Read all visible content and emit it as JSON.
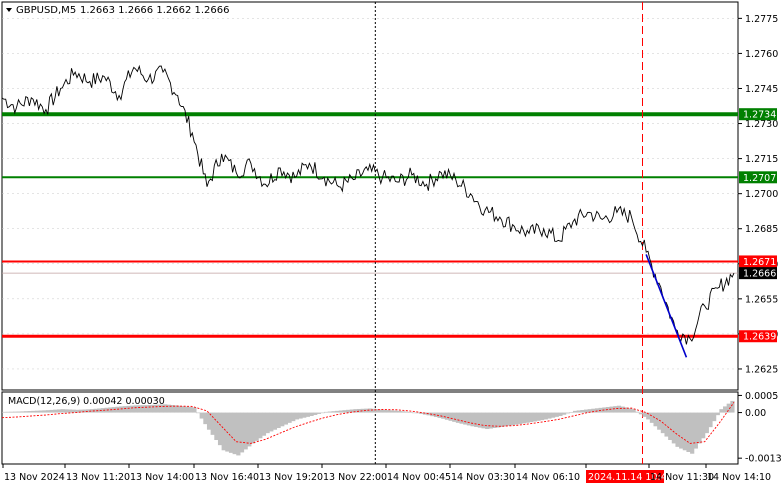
{
  "chart_data": {
    "type": "line",
    "header": {
      "symbol_timeframe": "GBPUSD,M5",
      "ohlc": "1.2663 1.2666 1.2662 1.2666"
    },
    "price_axis": {
      "ylim": [
        1.2616,
        1.2782
      ],
      "ticks": [
        "1.2775",
        "1.2760",
        "1.2745",
        "1.2730",
        "1.2715",
        "1.2700",
        "1.2685",
        "1.2670",
        "1.2655",
        "1.2640",
        "1.2625"
      ]
    },
    "time_axis": {
      "labels": [
        "13 Nov 2024",
        "13 Nov 11:20",
        "13 Nov 14:00",
        "13 Nov 16:40",
        "13 Nov 19:20",
        "13 Nov 22:00",
        "14 Nov 00:45",
        "14 Nov 03:30",
        "14 Nov 06:10",
        "2024.11.14 10:45",
        "14 Nov 11:30",
        "14 Nov 14:10"
      ],
      "highlighted_label": "2024.11.14 10:45"
    },
    "horizontal_levels": [
      {
        "price": 1.2734,
        "label": "1.2734",
        "color": "#008000",
        "width": 4
      },
      {
        "price": 1.2707,
        "label": "1.2707",
        "color": "#008000",
        "width": 2
      },
      {
        "price": 1.2671,
        "label": "1.2671",
        "color": "#ff0000",
        "width": 2
      },
      {
        "price": 1.2639,
        "label": "1.2639",
        "color": "#ff0000",
        "width": 3
      }
    ],
    "current_price": {
      "price": 1.2666,
      "label": "1.2666"
    },
    "price_series_x_index": [
      0,
      2,
      4,
      6,
      8,
      10,
      12,
      14,
      16,
      18,
      20,
      22,
      24,
      26,
      28,
      30,
      32,
      34,
      36,
      38,
      40,
      42,
      44,
      46,
      48,
      50,
      52,
      54,
      56,
      58,
      60,
      62,
      64,
      66,
      68,
      70,
      72,
      74,
      76,
      78,
      80,
      82,
      84,
      86,
      88,
      90,
      92,
      94,
      96,
      98,
      100
    ],
    "price_series": [
      1.2741,
      1.2737,
      1.2741,
      1.2736,
      1.2745,
      1.2752,
      1.2748,
      1.275,
      1.2742,
      1.2754,
      1.2749,
      1.2752,
      1.2742,
      1.2726,
      1.2703,
      1.2717,
      1.2709,
      1.2713,
      1.2704,
      1.2711,
      1.2707,
      1.2713,
      1.2707,
      1.2703,
      1.2706,
      1.271,
      1.2707,
      1.2705,
      1.2708,
      1.2704,
      1.2709,
      1.2706,
      1.27,
      1.2693,
      1.269,
      1.2686,
      1.2683,
      1.2685,
      1.268,
      1.2688,
      1.2692,
      1.2689,
      1.2692,
      1.269,
      1.2675,
      1.266,
      1.2642,
      1.2638,
      1.2652,
      1.266,
      1.2666
    ],
    "trend_line": {
      "from": [
        88,
        1.2674
      ],
      "to": [
        93.5,
        1.263
      ],
      "color": "#0000cc"
    },
    "vertical_markers": [
      {
        "x_index": 51,
        "style": "dotted",
        "color": "#000000"
      },
      {
        "x_index": 87.5,
        "style": "dashed",
        "color": "#ff0000"
      }
    ],
    "macd": {
      "label": "MACD(12,26,9) 0.00042 0.00030",
      "ylim": [
        -0.0015,
        0.0006
      ],
      "ticks": [
        "0.0005",
        "0.00",
        "-0.00133"
      ],
      "histogram": [
        2e-05,
        3e-05,
        5e-05,
        7e-05,
        0.0001,
        8e-05,
        0.0001,
        0.00014,
        0.00018,
        0.00021,
        0.00022,
        0.00024,
        0.0002,
        0.00015,
        -0.0005,
        -0.0011,
        -0.00125,
        -0.0009,
        -0.0006,
        -0.0004,
        -0.0002,
        -0.0001,
        2e-05,
        6e-05,
        0.0001,
        0.00012,
        8e-05,
        5e-05,
        0.0,
        -8e-05,
        -0.00018,
        -0.0003,
        -0.0004,
        -0.00048,
        -0.00042,
        -0.00035,
        -0.00028,
        -0.0002,
        -0.0001,
        5e-05,
        0.0001,
        0.00015,
        0.0002,
        0.0001,
        -0.0002,
        -0.0006,
        -0.001,
        -0.0012,
        -0.0006,
        0.0001,
        0.00042
      ],
      "signal": [
        -0.00015,
        -0.00013,
        -0.0001,
        -7e-05,
        -3e-05,
        0.0,
        4e-05,
        7e-05,
        0.0001,
        0.00014,
        0.00016,
        0.00018,
        0.00019,
        0.00018,
        5e-05,
        -0.0004,
        -0.00085,
        -0.0009,
        -0.00078,
        -0.0006,
        -0.00042,
        -0.00028,
        -0.00015,
        -5e-05,
        2e-05,
        7e-05,
        9e-05,
        8e-05,
        4e-05,
        -2e-05,
        -0.0001,
        -0.0002,
        -0.0003,
        -0.00038,
        -0.0004,
        -0.00038,
        -0.00033,
        -0.00027,
        -0.0002,
        -0.0001,
        0.0,
        7e-05,
        0.00012,
        0.00013,
        0.0,
        -0.00025,
        -0.0006,
        -0.0009,
        -0.00085,
        -0.0003,
        0.0003
      ]
    }
  },
  "colors": {
    "price_line": "#000000",
    "histogram": "#c0c0c0",
    "signal": "#ff0000",
    "grid": "#c8c8c8",
    "axis_tag_dark": "#000000",
    "highlight_tag": "#ff0000"
  }
}
